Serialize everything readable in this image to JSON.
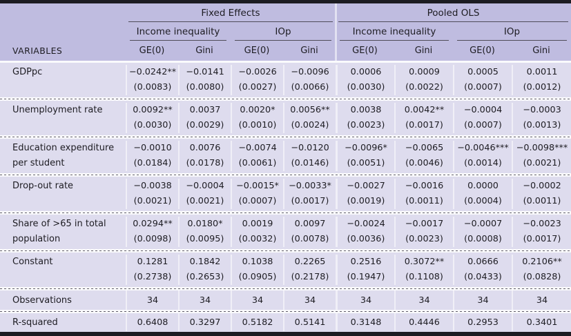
{
  "colors": {
    "header_bg": "#bfbce0",
    "body_bg": "#dedcee",
    "border_dark": "#1c1c22",
    "rule": "#4e4c58",
    "text": "#1d1c22"
  },
  "header": {
    "variables_label": "VARIABLES",
    "groups": [
      {
        "label": "Fixed Effects"
      },
      {
        "label": "Pooled OLS"
      }
    ],
    "subgroups": [
      {
        "label": "Income inequality"
      },
      {
        "label": "IOp"
      },
      {
        "label": "Income inequality"
      },
      {
        "label": "IOp"
      }
    ],
    "columns": [
      "GE(0)",
      "Gini",
      "GE(0)",
      "Gini",
      "GE(0)",
      "Gini",
      "GE(0)",
      "Gini"
    ]
  },
  "table": {
    "rows": [
      {
        "label": "GDPpc",
        "coefs": [
          "−0.0242**",
          "−0.0141",
          "−0.0026",
          "−0.0096",
          "0.0006",
          "0.0009",
          "0.0005",
          "0.0011"
        ],
        "ses": [
          "(0.0083)",
          "(0.0080)",
          "(0.0027)",
          "(0.0066)",
          "(0.0030)",
          "(0.0022)",
          "(0.0007)",
          "(0.0012)"
        ]
      },
      {
        "label": "Unemployment rate",
        "coefs": [
          "0.0092**",
          "0.0037",
          "0.0020*",
          "0.0056**",
          "0.0038",
          "0.0042**",
          "−0.0004",
          "−0.0003"
        ],
        "ses": [
          "(0.0030)",
          "(0.0029)",
          "(0.0010)",
          "(0.0024)",
          "(0.0023)",
          "(0.0017)",
          "(0.0007)",
          "(0.0013)"
        ]
      },
      {
        "label": "Education expenditure per student",
        "coefs": [
          "−0.0010",
          "0.0076",
          "−0.0074",
          "−0.0120",
          "−0.0096*",
          "−0.0065",
          "−0.0046***",
          "−0.0098***"
        ],
        "ses": [
          "(0.0184)",
          "(0.0178)",
          "(0.0061)",
          "(0.0146)",
          "(0.0051)",
          "(0.0046)",
          "(0.0014)",
          "(0.0021)"
        ]
      },
      {
        "label": "Drop-out rate",
        "coefs": [
          "−0.0038",
          "−0.0004",
          "−0.0015*",
          "−0.0033*",
          "−0.0027",
          "−0.0016",
          "0.0000",
          "−0.0002"
        ],
        "ses": [
          "(0.0021)",
          "(0.0021)",
          "(0.0007)",
          "(0.0017)",
          "(0.0019)",
          "(0.0011)",
          "(0.0004)",
          "(0.0011)"
        ]
      },
      {
        "label": "Share of >65 in total population",
        "coefs": [
          "0.0294**",
          "0.0180*",
          "0.0019",
          "0.0097",
          "−0.0024",
          "−0.0017",
          "−0.0007",
          "−0.0023"
        ],
        "ses": [
          "(0.0098)",
          "(0.0095)",
          "(0.0032)",
          "(0.0078)",
          "(0.0036)",
          "(0.0023)",
          "(0.0008)",
          "(0.0017)"
        ]
      },
      {
        "label": "Constant",
        "coefs": [
          "0.1281",
          "0.1842",
          "0.1038",
          "0.2265",
          "0.2516",
          "0.3072**",
          "0.0666",
          "0.2106**"
        ],
        "ses": [
          "(0.2738)",
          "(0.2653)",
          "(0.0905)",
          "(0.2178)",
          "(0.1947)",
          "(0.1108)",
          "(0.0433)",
          "(0.0828)"
        ]
      }
    ],
    "summary_rows": [
      {
        "label": "Observations",
        "values": [
          "34",
          "34",
          "34",
          "34",
          "34",
          "34",
          "34",
          "34"
        ]
      },
      {
        "label": "R-squared",
        "values": [
          "0.6408",
          "0.3297",
          "0.5182",
          "0.5141",
          "0.3148",
          "0.4446",
          "0.2953",
          "0.3401"
        ]
      }
    ]
  }
}
